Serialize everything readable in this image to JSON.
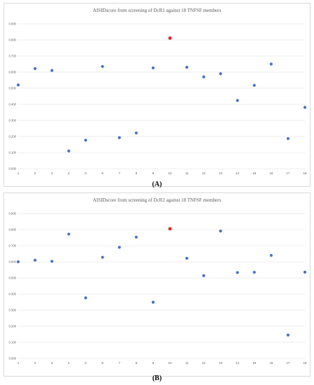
{
  "charts": [
    {
      "label": "(A)",
      "chart_data": {
        "type": "scatter",
        "title": "AISIDscore from screening of DcR1 against 18 TNFSF members",
        "xlabel": "",
        "ylabel": "",
        "x": [
          1,
          2,
          3,
          4,
          5,
          6,
          7,
          8,
          9,
          10,
          11,
          12,
          13,
          14,
          15,
          16,
          17,
          18
        ],
        "xticks": [
          "1",
          "2",
          "3",
          "4",
          "5",
          "6",
          "7",
          "8",
          "9",
          "10",
          "11",
          "12",
          "13",
          "14",
          "15",
          "16",
          "17",
          "18"
        ],
        "yticks": [
          "0.000",
          "0.100",
          "0.200",
          "0.300",
          "0.400",
          "0.500",
          "0.600",
          "0.700",
          "0.800",
          "0.900"
        ],
        "ylim": [
          0,
          0.9
        ],
        "grid": true,
        "series": [
          {
            "values": [
              0.52,
              0.622,
              0.61,
              0.11,
              0.177,
              0.635,
              0.193,
              0.222,
              0.626,
              0.811,
              0.63,
              0.57,
              0.59,
              0.424,
              0.518,
              0.65,
              0.187,
              0.381
            ],
            "color": "#4472c4",
            "highlight_index": 9,
            "highlight_color": "#e32222"
          }
        ]
      }
    },
    {
      "label": "(B)",
      "chart_data": {
        "type": "scatter",
        "title": "AISIDscore from screening of DcR2 against 18 TNFSF members",
        "xlabel": "",
        "ylabel": "",
        "x": [
          1,
          2,
          3,
          4,
          5,
          6,
          7,
          8,
          9,
          10,
          11,
          12,
          13,
          14,
          15,
          16,
          17,
          18
        ],
        "xticks": [
          "1",
          "2",
          "3",
          "4",
          "5",
          "6",
          "7",
          "8",
          "9",
          "10",
          "11",
          "12",
          "13",
          "14",
          "15",
          "16",
          "17",
          "18"
        ],
        "yticks": [
          "0.000",
          "0.100",
          "0.200",
          "0.300",
          "0.400",
          "0.500",
          "0.600",
          "0.700",
          "0.800",
          "0.900"
        ],
        "ylim": [
          0,
          0.9
        ],
        "grid": true,
        "series": [
          {
            "values": [
              0.6,
              0.61,
              0.603,
              0.772,
              0.376,
              0.628,
              0.69,
              0.753,
              0.349,
              0.805,
              0.622,
              0.514,
              0.791,
              0.533,
              0.535,
              0.64,
              0.145,
              0.536
            ],
            "color": "#4472c4",
            "highlight_index": 9,
            "highlight_color": "#e32222"
          }
        ]
      }
    }
  ]
}
